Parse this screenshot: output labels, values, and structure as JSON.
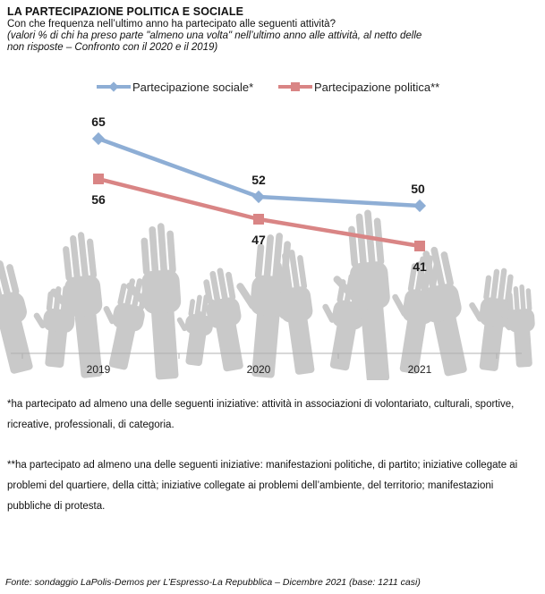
{
  "header": {
    "title": "LA PARTECIPAZIONE POLITICA E SOCIALE",
    "subtitle": "Con che frequenza nell’ultimo anno ha partecipato alle seguenti attività?",
    "note_line1": "(valori % di chi ha preso parte \"almeno una volta\" nell’ultimo anno alle attività, al netto delle",
    "note_line2": "non risposte – Confronto con il 2020 e il 2019)"
  },
  "chart_data": {
    "type": "line",
    "x": [
      "2019",
      "2020",
      "2021"
    ],
    "series": [
      {
        "name": "Partecipazione sociale*",
        "values": [
          65,
          52,
          50
        ],
        "color": "#8eaed5",
        "marker": "diamond"
      },
      {
        "name": "Partecipazione politica**",
        "values": [
          56,
          47,
          41
        ],
        "color": "#d98585",
        "marker": "square"
      }
    ],
    "legend_position": "top-center",
    "grid": false,
    "background": "raised hands silhouettes"
  },
  "footnotes": {
    "social": "*ha partecipato ad almeno una delle seguenti iniziative: attività in associazioni di volontariato, culturali, sportive, ricreative, professionali, di categoria.",
    "political": "**ha partecipato ad almeno una delle seguenti iniziative: manifestazioni politiche, di partito; iniziative collegate ai problemi del quartiere, della città; iniziative collegate ai problemi dell’ambiente, del territorio; manifestazioni pubbliche di protesta."
  },
  "source": "Fonte: sondaggio LaPolis-Demos per L’Espresso-La Repubblica – Dicembre 2021 (base: 1211 casi)"
}
